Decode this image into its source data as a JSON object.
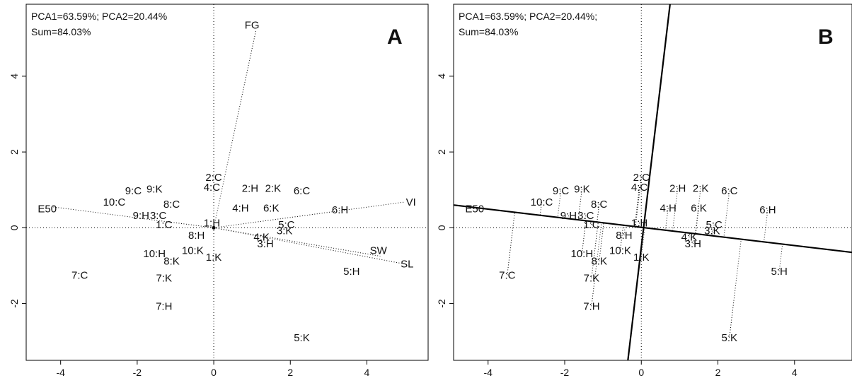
{
  "chart_data": [
    {
      "type": "scatter",
      "panel": "A",
      "info_line1": "PCA1=63.59%; PCA2=20.44%",
      "info_line2": "Sum=84.03%",
      "xlim": [
        -4.9,
        5.6
      ],
      "ylim": [
        -3.5,
        5.9
      ],
      "x_ticks": [
        -4,
        -2,
        0,
        2,
        4
      ],
      "y_ticks": [
        -2,
        0,
        2,
        4
      ],
      "grid": false,
      "points": [
        {
          "label": "2:C",
          "x": 0.0,
          "y": 1.33
        },
        {
          "label": "4:C",
          "x": -0.05,
          "y": 1.07
        },
        {
          "label": "2:H",
          "x": 0.95,
          "y": 1.04
        },
        {
          "label": "2:K",
          "x": 1.55,
          "y": 1.04
        },
        {
          "label": "6:C",
          "x": 2.3,
          "y": 0.98
        },
        {
          "label": "9:C",
          "x": -2.1,
          "y": 0.98
        },
        {
          "label": "9:K",
          "x": -1.55,
          "y": 1.02
        },
        {
          "label": "10:C",
          "x": -2.6,
          "y": 0.68
        },
        {
          "label": "8:C",
          "x": -1.1,
          "y": 0.62
        },
        {
          "label": "4:H",
          "x": 0.7,
          "y": 0.52
        },
        {
          "label": "6:K",
          "x": 1.5,
          "y": 0.52
        },
        {
          "label": "6:H",
          "x": 3.3,
          "y": 0.47
        },
        {
          "label": "9:H",
          "x": -1.9,
          "y": 0.32
        },
        {
          "label": "3:C",
          "x": -1.45,
          "y": 0.32
        },
        {
          "label": "1:C",
          "x": -1.3,
          "y": 0.08
        },
        {
          "label": "1:H",
          "x": -0.05,
          "y": 0.13
        },
        {
          "label": "5:C",
          "x": 1.9,
          "y": 0.08
        },
        {
          "label": "3:K",
          "x": 1.85,
          "y": -0.08
        },
        {
          "label": "8:H",
          "x": -0.45,
          "y": -0.2
        },
        {
          "label": "4:K",
          "x": 1.25,
          "y": -0.25
        },
        {
          "label": "3:H",
          "x": 1.35,
          "y": -0.42
        },
        {
          "label": "10:K",
          "x": -0.55,
          "y": -0.6
        },
        {
          "label": "10:H",
          "x": -1.55,
          "y": -0.68
        },
        {
          "label": "1:K",
          "x": 0.0,
          "y": -0.78
        },
        {
          "label": "8:K",
          "x": -1.1,
          "y": -0.88
        },
        {
          "label": "7:C",
          "x": -3.5,
          "y": -1.25
        },
        {
          "label": "7:K",
          "x": -1.3,
          "y": -1.33
        },
        {
          "label": "5:H",
          "x": 3.6,
          "y": -1.15
        },
        {
          "label": "7:H",
          "x": -1.3,
          "y": -2.07
        },
        {
          "label": "5:K",
          "x": 2.3,
          "y": -2.9
        }
      ],
      "vectors": [
        {
          "label": "FG",
          "x": 1.1,
          "y": 5.2,
          "lx": 1.0,
          "ly": 5.35
        },
        {
          "label": "VI",
          "x": 5.0,
          "y": 0.68,
          "lx": 5.15,
          "ly": 0.68
        },
        {
          "label": "E50",
          "x": -4.2,
          "y": 0.55,
          "lx": -4.35,
          "ly": 0.5
        },
        {
          "label": "SW",
          "x": 4.35,
          "y": -0.75,
          "lx": 4.3,
          "ly": -0.6
        },
        {
          "label": "SL",
          "x": 4.95,
          "y": -0.95,
          "lx": 5.05,
          "ly": -0.95
        }
      ]
    },
    {
      "type": "scatter",
      "panel": "B",
      "info_line1": "PCA1=63.59%; PCA2=20.44%;",
      "info_line2": "Sum=84.03%",
      "xlim": [
        -4.9,
        5.5
      ],
      "ylim": [
        -3.5,
        5.9
      ],
      "x_ticks": [
        -4,
        -2,
        0,
        2,
        4
      ],
      "y_ticks": [
        -2,
        0,
        2,
        4
      ],
      "grid": false,
      "points": [
        {
          "label": "2:C",
          "x": 0.0,
          "y": 1.33
        },
        {
          "label": "4:C",
          "x": -0.05,
          "y": 1.07
        },
        {
          "label": "2:H",
          "x": 0.95,
          "y": 1.04
        },
        {
          "label": "2:K",
          "x": 1.55,
          "y": 1.04
        },
        {
          "label": "6:C",
          "x": 2.3,
          "y": 0.98
        },
        {
          "label": "9:C",
          "x": -2.1,
          "y": 0.98
        },
        {
          "label": "9:K",
          "x": -1.55,
          "y": 1.02
        },
        {
          "label": "10:C",
          "x": -2.6,
          "y": 0.68
        },
        {
          "label": "8:C",
          "x": -1.1,
          "y": 0.62
        },
        {
          "label": "4:H",
          "x": 0.7,
          "y": 0.52
        },
        {
          "label": "6:K",
          "x": 1.5,
          "y": 0.52
        },
        {
          "label": "6:H",
          "x": 3.3,
          "y": 0.47
        },
        {
          "label": "9:H",
          "x": -1.9,
          "y": 0.32
        },
        {
          "label": "3:C",
          "x": -1.45,
          "y": 0.32
        },
        {
          "label": "1:C",
          "x": -1.3,
          "y": 0.08
        },
        {
          "label": "1:H",
          "x": -0.05,
          "y": 0.13
        },
        {
          "label": "5:C",
          "x": 1.9,
          "y": 0.08
        },
        {
          "label": "3:K",
          "x": 1.85,
          "y": -0.08
        },
        {
          "label": "8:H",
          "x": -0.45,
          "y": -0.2
        },
        {
          "label": "4:K",
          "x": 1.25,
          "y": -0.25
        },
        {
          "label": "3:H",
          "x": 1.35,
          "y": -0.42
        },
        {
          "label": "10:K",
          "x": -0.55,
          "y": -0.6
        },
        {
          "label": "10:H",
          "x": -1.55,
          "y": -0.68
        },
        {
          "label": "1:K",
          "x": 0.0,
          "y": -0.78
        },
        {
          "label": "8:K",
          "x": -1.1,
          "y": -0.88
        },
        {
          "label": "7:C",
          "x": -3.5,
          "y": -1.25
        },
        {
          "label": "7:K",
          "x": -1.3,
          "y": -1.33
        },
        {
          "label": "5:H",
          "x": 3.6,
          "y": -1.15
        },
        {
          "label": "7:H",
          "x": -1.3,
          "y": -2.07
        },
        {
          "label": "5:K",
          "x": 2.3,
          "y": -2.9
        }
      ],
      "reference_axis_label": "E50",
      "reference_line": {
        "x1": -4.9,
        "y1": 0.6,
        "x2": 5.5,
        "y2": -0.65
      },
      "perpendicular_line": {
        "x1": -0.35,
        "y1": -3.5,
        "x2": 0.75,
        "y2": 5.9
      }
    }
  ]
}
